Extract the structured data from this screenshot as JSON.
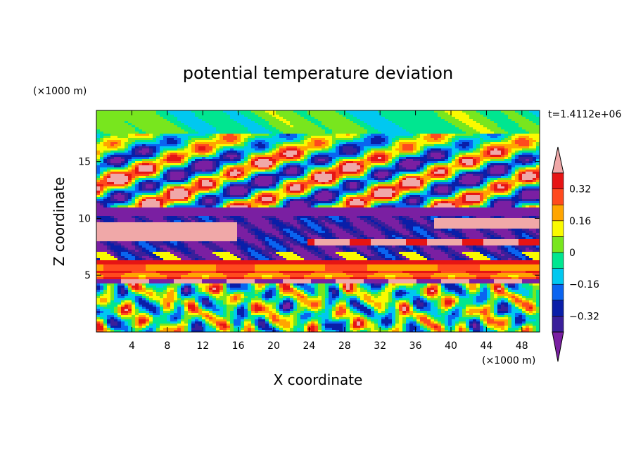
{
  "chart_data": {
    "type": "heatmap",
    "title": "potential temperature deviation",
    "xlabel": "X coordinate",
    "ylabel": "Z coordinate",
    "x_unit": "(×1000 m)",
    "y_unit": "(×1000 m)",
    "time_label": "t=1.4112e+06",
    "xlim": [
      0,
      50
    ],
    "ylim": [
      0,
      19.5
    ],
    "x_ticks": [
      4,
      8,
      12,
      16,
      20,
      24,
      28,
      32,
      36,
      40,
      44,
      48
    ],
    "x_tick_labels": [
      "4",
      "8",
      "12",
      "16",
      "20",
      "24",
      "28",
      "32",
      "36",
      "40",
      "44",
      "48"
    ],
    "y_ticks": [
      5,
      10,
      15
    ],
    "y_tick_labels": [
      "5",
      "10",
      "15"
    ],
    "colorbar": {
      "levels": [
        -0.4,
        -0.32,
        -0.24,
        -0.16,
        -0.08,
        0.0,
        0.08,
        0.16,
        0.24,
        0.32,
        0.4
      ],
      "tick_values": [
        0.32,
        0.16,
        0,
        -0.16,
        -0.32
      ],
      "tick_labels": [
        "0.32",
        "0.16",
        "0",
        "−0.16",
        "−0.32"
      ],
      "colors": [
        "#7a1fa2",
        "#3a1f9a",
        "#0a1ea8",
        "#0a64f0",
        "#00c8f0",
        "#00e690",
        "#78e61e",
        "#fafa00",
        "#ffa500",
        "#ff4a1e",
        "#e61414",
        "#f0a8a8"
      ],
      "extend": "both"
    },
    "bands": [
      {
        "zmin": 0.0,
        "zmax": 4.2,
        "pattern": "convective rolls",
        "range": [
          -0.24,
          0.4
        ]
      },
      {
        "zmin": 4.2,
        "zmax": 4.6,
        "pattern": "alternating warm/cold",
        "range": [
          -0.4,
          0.4
        ]
      },
      {
        "zmin": 4.6,
        "zmax": 6.4,
        "pattern": "stable warm layer",
        "range": [
          0.16,
          0.4
        ]
      },
      {
        "zmin": 6.4,
        "zmax": 10.3,
        "pattern": "cold layer with warm sheets",
        "range": [
          -0.4,
          0.4
        ]
      },
      {
        "zmin": 10.3,
        "zmax": 17.5,
        "pattern": "tilted gravity waves",
        "range": [
          -0.4,
          0.4
        ]
      },
      {
        "zmin": 17.5,
        "zmax": 19.5,
        "pattern": "weak perturbation",
        "range": [
          -0.16,
          0.08
        ]
      }
    ]
  }
}
